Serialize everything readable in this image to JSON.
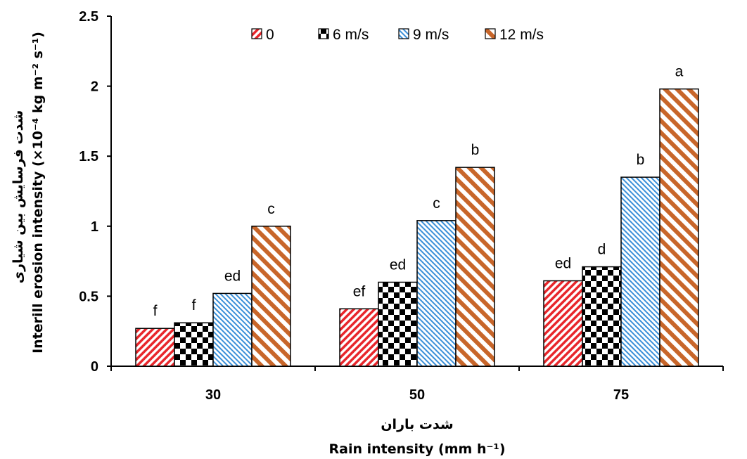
{
  "chart_data": {
    "type": "bar",
    "categories": [
      "30",
      "50",
      "75"
    ],
    "series": [
      {
        "name": "0",
        "values": [
          0.27,
          0.41,
          0.61
        ],
        "labels": [
          "f",
          "ef",
          "ed"
        ],
        "color": "#e8262b",
        "pattern": "red-diagonal"
      },
      {
        "name": "6 m/s",
        "values": [
          0.31,
          0.6,
          0.71
        ],
        "labels": [
          "f",
          "ed",
          "d"
        ],
        "color": "#000000",
        "pattern": "checkerboard"
      },
      {
        "name": "9 m/s",
        "values": [
          0.52,
          1.04,
          1.35
        ],
        "labels": [
          "ed",
          "c",
          "b"
        ],
        "color": "#3a8fd8",
        "pattern": "blue-dotted-diagonal"
      },
      {
        "name": "12 m/s",
        "values": [
          1.0,
          1.42,
          1.98
        ],
        "labels": [
          "c",
          "b",
          "a"
        ],
        "color": "#c8662a",
        "pattern": "orange-wide-diagonal"
      }
    ],
    "ylim": [
      0,
      2.5
    ],
    "yticks": [
      "0",
      "0.5",
      "1",
      "1.5",
      "2",
      "2.5"
    ],
    "ylabel_fa": "شدت فرسایش بین شیاری",
    "ylabel_en": "Interill erosion intensity (×10⁻⁴ kg  m⁻² s⁻¹)",
    "xlabel_fa": "شدت باران",
    "xlabel_en": "Rain intensity (mm h⁻¹)",
    "legend_position": "top",
    "grid": false
  }
}
